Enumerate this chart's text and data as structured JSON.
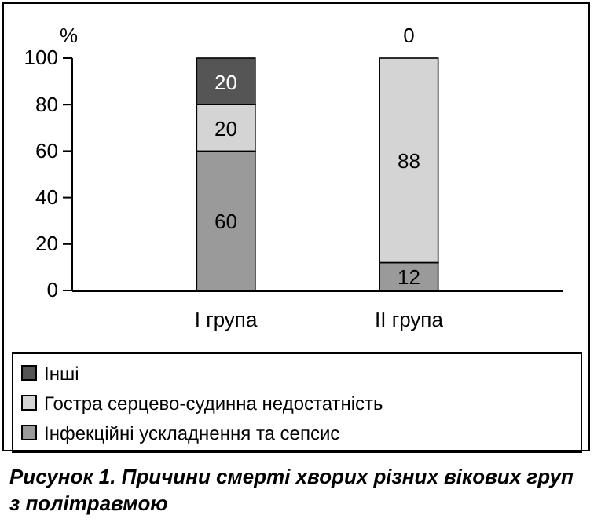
{
  "chart_data": {
    "type": "bar",
    "title": "Рисунок 1. Причини смерті хворих різних вікових груп з політравмою",
    "ylabel": "%",
    "categories": [
      "I група",
      "II група"
    ],
    "series": [
      {
        "name": "Інфекційні ускладнення та сепсис",
        "color": "#9a9a9a",
        "values": [
          60,
          12
        ]
      },
      {
        "name": "Гостра серцево-судинна недостатність",
        "color": "#d4d4d4",
        "values": [
          20,
          88
        ]
      },
      {
        "name": "Інші",
        "color": "#555555",
        "values": [
          20,
          0
        ]
      }
    ],
    "stacked": true,
    "ylim": [
      0,
      100
    ],
    "yticks": [
      0,
      20,
      40,
      60,
      80,
      100
    ],
    "data_labels": true,
    "legend": "bottom"
  }
}
